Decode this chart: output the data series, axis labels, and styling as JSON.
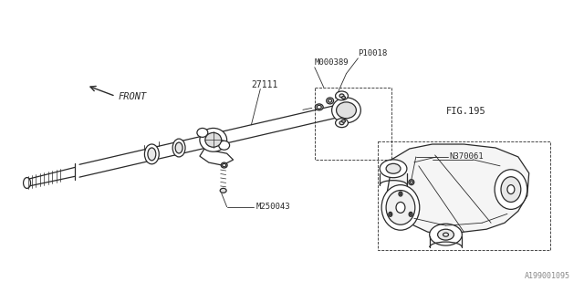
{
  "bg_color": "#ffffff",
  "line_color": "#2a2a2a",
  "fig_width": 6.4,
  "fig_height": 3.2,
  "dpi": 100,
  "watermark": "A199001095",
  "labels": {
    "front": "FRONT",
    "part_27111": "27111",
    "part_M250043": "M250043",
    "part_P10018": "P10018",
    "part_M000389": "M000389",
    "part_FIG195": "FIG.195",
    "part_N370061": "N370061"
  }
}
